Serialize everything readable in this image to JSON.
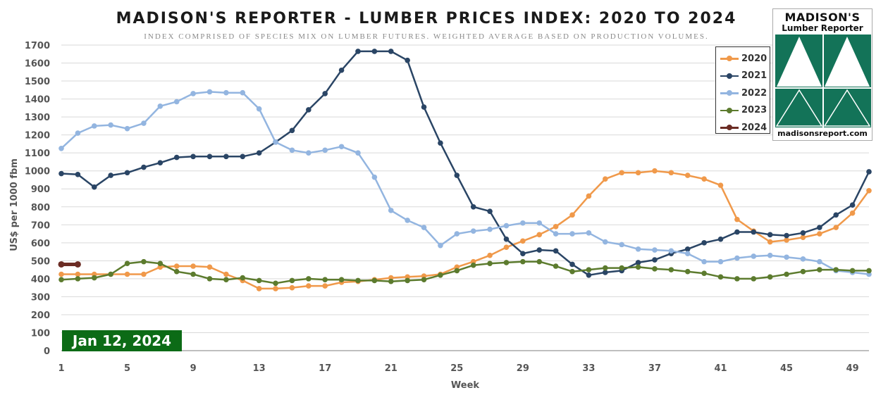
{
  "chart_data": {
    "type": "line",
    "title": "MADISON'S REPORTER - LUMBER PRICES INDEX: 2020 TO 2024",
    "subtitle": "INDEX COMPRISED OF SPECIES MIX ON LUMBER FUTURES. WEIGHTED AVERAGE BASED ON PRODUCTION VOLUMES.",
    "xlabel": "Week",
    "ylabel": "US$ per 1000 fbm",
    "xlim": [
      1,
      50
    ],
    "ylim": [
      0,
      1700
    ],
    "xticks": [
      1,
      5,
      9,
      13,
      17,
      21,
      25,
      29,
      33,
      37,
      41,
      45,
      49
    ],
    "yticks": [
      0,
      100,
      200,
      300,
      400,
      500,
      600,
      700,
      800,
      900,
      1000,
      1100,
      1200,
      1300,
      1400,
      1500,
      1600,
      1700
    ],
    "grid": true,
    "legend_position": "top-right",
    "series": [
      {
        "name": "2020",
        "color": "#f0994a",
        "x_start": 1,
        "values": [
          425,
          425,
          425,
          425,
          425,
          425,
          465,
          470,
          470,
          465,
          425,
          390,
          345,
          345,
          350,
          360,
          360,
          380,
          385,
          395,
          405,
          410,
          415,
          425,
          465,
          495,
          530,
          575,
          610,
          645,
          690,
          755,
          860,
          955,
          990,
          990,
          1000,
          990,
          975,
          955,
          920,
          730,
          665,
          605,
          615,
          630,
          650,
          685,
          765,
          890
        ]
      },
      {
        "name": "2021",
        "color": "#2a4565",
        "x_start": 1,
        "values": [
          985,
          980,
          910,
          975,
          990,
          1020,
          1045,
          1075,
          1080,
          1080,
          1080,
          1080,
          1100,
          1160,
          1225,
          1340,
          1430,
          1560,
          1665,
          1665,
          1665,
          1615,
          1355,
          1155,
          975,
          800,
          775,
          620,
          540,
          560,
          555,
          480,
          420,
          435,
          445,
          490,
          505,
          540,
          565,
          600,
          620,
          660,
          660,
          645,
          640,
          655,
          685,
          755,
          810,
          995
        ]
      },
      {
        "name": "2022",
        "color": "#93b5e0",
        "x_start": 1,
        "values": [
          1125,
          1210,
          1250,
          1255,
          1235,
          1265,
          1360,
          1385,
          1430,
          1440,
          1435,
          1435,
          1345,
          1160,
          1115,
          1100,
          1115,
          1135,
          1100,
          965,
          780,
          725,
          685,
          585,
          650,
          665,
          675,
          695,
          710,
          710,
          650,
          650,
          655,
          605,
          590,
          565,
          560,
          555,
          540,
          495,
          495,
          515,
          525,
          530,
          520,
          510,
          495,
          445,
          435,
          425
        ]
      },
      {
        "name": "2023",
        "color": "#5c7b2e",
        "x_start": 1,
        "values": [
          395,
          400,
          405,
          425,
          485,
          495,
          485,
          440,
          425,
          400,
          395,
          405,
          390,
          375,
          390,
          400,
          395,
          395,
          390,
          390,
          385,
          390,
          395,
          420,
          445,
          475,
          485,
          490,
          495,
          495,
          470,
          440,
          450,
          460,
          460,
          465,
          455,
          450,
          440,
          430,
          410,
          400,
          400,
          410,
          425,
          440,
          450,
          450,
          445,
          445
        ]
      },
      {
        "name": "2024",
        "color": "#6b2c24",
        "x_start": 1,
        "values": [
          480,
          480
        ]
      }
    ]
  },
  "badge": {
    "label": "Jan 12, 2024"
  },
  "logo": {
    "name": "MADISON'S",
    "tagline": "Lumber Reporter",
    "url": "madisonsreport.com",
    "color": "#137358"
  }
}
